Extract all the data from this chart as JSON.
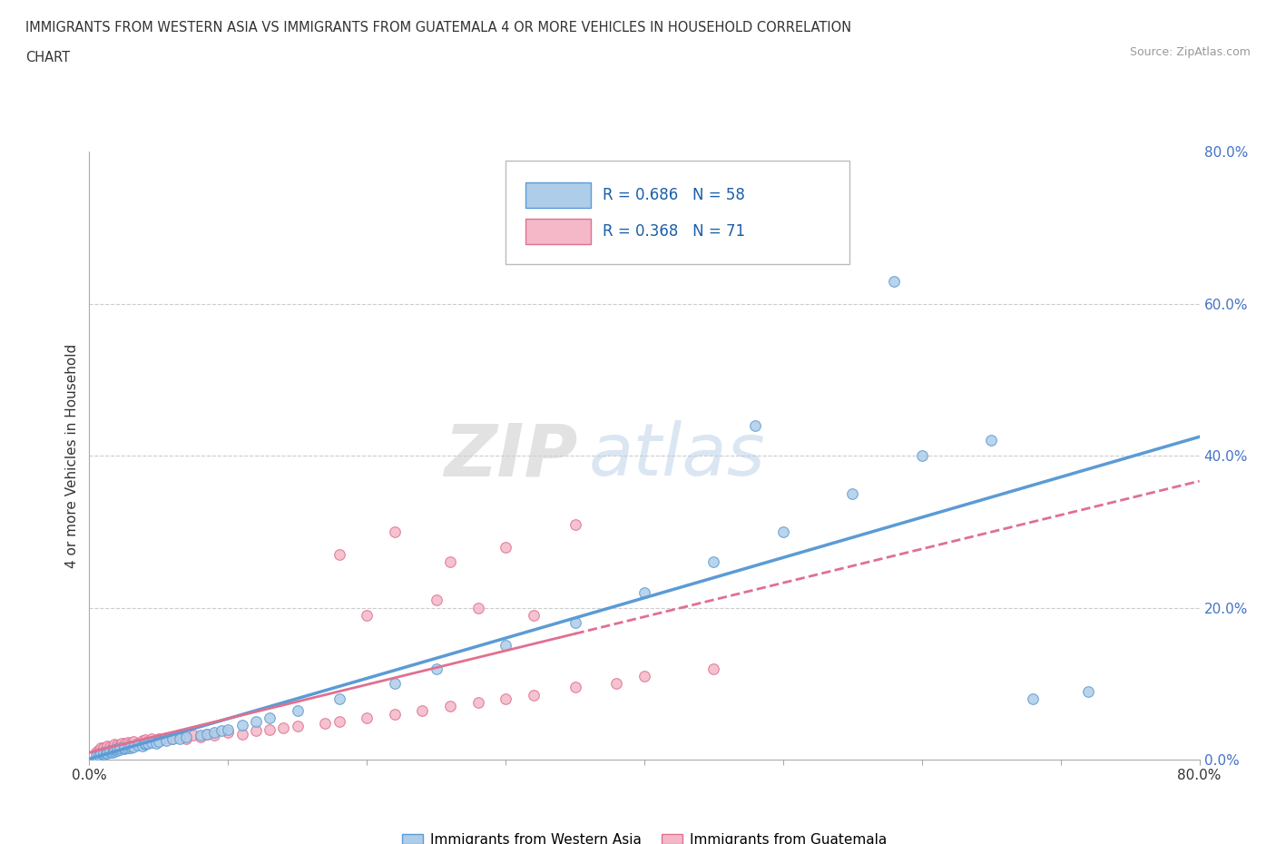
{
  "title_line1": "IMMIGRANTS FROM WESTERN ASIA VS IMMIGRANTS FROM GUATEMALA 4 OR MORE VEHICLES IN HOUSEHOLD CORRELATION",
  "title_line2": "CHART",
  "source_text": "Source: ZipAtlas.com",
  "ylabel": "4 or more Vehicles in Household",
  "xmin": 0.0,
  "xmax": 0.8,
  "ymin": 0.0,
  "ymax": 0.8,
  "y_tick_labels_right": [
    "0.0%",
    "20.0%",
    "40.0%",
    "60.0%",
    "80.0%"
  ],
  "r_western_asia": 0.686,
  "n_western_asia": 58,
  "r_guatemala": 0.368,
  "n_guatemala": 71,
  "legend_label_1": "Immigrants from Western Asia",
  "legend_label_2": "Immigrants from Guatemala",
  "color_western_asia": "#aecde8",
  "color_western_asia_line": "#5b9bd5",
  "color_guatemala": "#f4b8c8",
  "color_guatemala_line": "#e07090",
  "watermark_zip": "ZIP",
  "watermark_atlas": "atlas",
  "background_color": "#ffffff",
  "grid_color": "#cccccc",
  "wa_x": [
    0.005,
    0.007,
    0.008,
    0.01,
    0.01,
    0.012,
    0.013,
    0.015,
    0.015,
    0.017,
    0.018,
    0.018,
    0.02,
    0.02,
    0.022,
    0.022,
    0.025,
    0.025,
    0.028,
    0.03,
    0.03,
    0.032,
    0.035,
    0.038,
    0.04,
    0.04,
    0.042,
    0.045,
    0.048,
    0.05,
    0.055,
    0.06,
    0.065,
    0.07,
    0.08,
    0.085,
    0.09,
    0.095,
    0.1,
    0.11,
    0.12,
    0.13,
    0.15,
    0.18,
    0.22,
    0.25,
    0.3,
    0.35,
    0.4,
    0.45,
    0.5,
    0.55,
    0.6,
    0.65,
    0.68,
    0.72,
    0.48,
    0.58
  ],
  "wa_y": [
    0.005,
    0.006,
    0.008,
    0.007,
    0.009,
    0.01,
    0.008,
    0.009,
    0.012,
    0.01,
    0.011,
    0.013,
    0.012,
    0.014,
    0.013,
    0.015,
    0.014,
    0.016,
    0.015,
    0.016,
    0.018,
    0.017,
    0.019,
    0.018,
    0.02,
    0.022,
    0.021,
    0.023,
    0.022,
    0.024,
    0.025,
    0.027,
    0.028,
    0.03,
    0.032,
    0.034,
    0.036,
    0.038,
    0.04,
    0.045,
    0.05,
    0.055,
    0.065,
    0.08,
    0.1,
    0.12,
    0.15,
    0.18,
    0.22,
    0.26,
    0.3,
    0.35,
    0.4,
    0.42,
    0.08,
    0.09,
    0.44,
    0.63
  ],
  "gt_x": [
    0.005,
    0.006,
    0.007,
    0.008,
    0.008,
    0.009,
    0.01,
    0.01,
    0.012,
    0.013,
    0.013,
    0.015,
    0.015,
    0.017,
    0.018,
    0.018,
    0.02,
    0.02,
    0.022,
    0.023,
    0.025,
    0.026,
    0.028,
    0.028,
    0.03,
    0.032,
    0.035,
    0.038,
    0.04,
    0.04,
    0.042,
    0.045,
    0.048,
    0.05,
    0.052,
    0.055,
    0.06,
    0.065,
    0.07,
    0.075,
    0.08,
    0.085,
    0.09,
    0.1,
    0.11,
    0.12,
    0.13,
    0.14,
    0.15,
    0.17,
    0.18,
    0.2,
    0.22,
    0.24,
    0.26,
    0.28,
    0.3,
    0.32,
    0.35,
    0.38,
    0.4,
    0.45,
    0.18,
    0.22,
    0.26,
    0.3,
    0.35,
    0.2,
    0.25,
    0.28,
    0.32
  ],
  "gt_y": [
    0.01,
    0.012,
    0.009,
    0.013,
    0.015,
    0.011,
    0.014,
    0.016,
    0.013,
    0.015,
    0.018,
    0.014,
    0.017,
    0.016,
    0.018,
    0.02,
    0.017,
    0.019,
    0.018,
    0.021,
    0.019,
    0.022,
    0.02,
    0.023,
    0.021,
    0.024,
    0.022,
    0.025,
    0.023,
    0.026,
    0.024,
    0.027,
    0.025,
    0.028,
    0.026,
    0.029,
    0.027,
    0.03,
    0.028,
    0.032,
    0.03,
    0.034,
    0.032,
    0.036,
    0.034,
    0.038,
    0.04,
    0.042,
    0.044,
    0.048,
    0.05,
    0.055,
    0.06,
    0.065,
    0.07,
    0.075,
    0.08,
    0.085,
    0.095,
    0.1,
    0.11,
    0.12,
    0.27,
    0.3,
    0.26,
    0.28,
    0.31,
    0.19,
    0.21,
    0.2,
    0.19
  ]
}
